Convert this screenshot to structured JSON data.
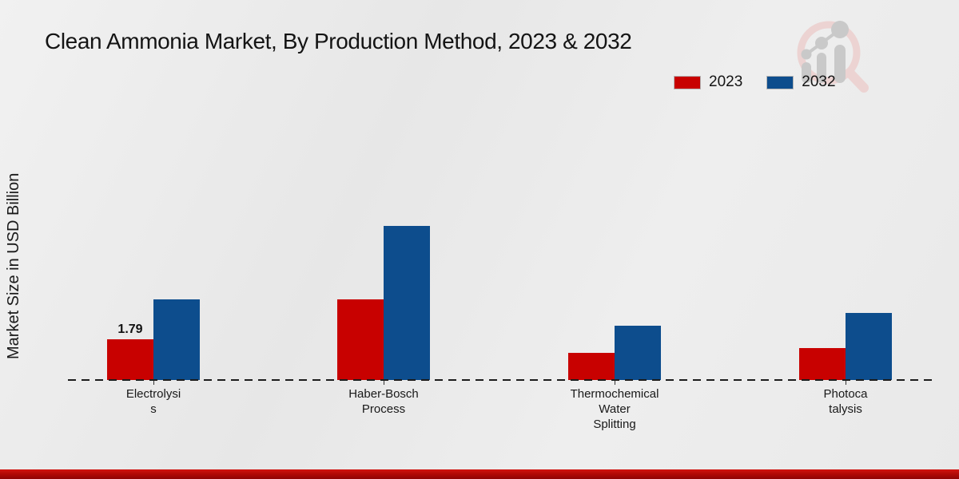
{
  "header": {
    "title": "Clean Ammonia Market, By Production Method, 2023 & 2032"
  },
  "y_axis_label": "Market Size in USD Billion",
  "legend": [
    {
      "label": "2023",
      "color": "#c80100"
    },
    {
      "label": "2032",
      "color": "#0d4d8d"
    }
  ],
  "colors": {
    "series_2023": "#c80100",
    "series_2032": "#0d4d8d",
    "footer_accent": "#b30a07",
    "background": "#eaeaea"
  },
  "watermark_icon": "magnifier-bar-chart-logo",
  "chart_data": {
    "type": "bar",
    "title": "Clean Ammonia Market, By Production Method, 2023 & 2032",
    "xlabel": "",
    "ylabel": "Market Size in USD Billion",
    "categories": [
      "Electrolysis",
      "Haber-Bosch Process",
      "Thermochemical Water Splitting",
      "Photocatalysis"
    ],
    "category_label_lines": [
      [
        "Electrolysi",
        "s"
      ],
      [
        "Haber-Bosch",
        "Process"
      ],
      [
        "Thermochemical",
        "Water",
        "Splitting"
      ],
      [
        "Photoca",
        "talysis"
      ]
    ],
    "series": [
      {
        "name": "2023",
        "color": "#c80100",
        "values": [
          1.79,
          3.55,
          1.18,
          1.4
        ]
      },
      {
        "name": "2032",
        "color": "#0d4d8d",
        "values": [
          3.55,
          6.78,
          2.38,
          2.95
        ]
      }
    ],
    "data_labels": [
      {
        "series_index": 0,
        "category_index": 0,
        "text": "1.79"
      }
    ],
    "baseline_value": 0,
    "ylim": [
      0,
      7.5
    ],
    "grid": false,
    "axis_line_style": "dashed",
    "legend_position": "top-right",
    "units": "USD Billion"
  }
}
